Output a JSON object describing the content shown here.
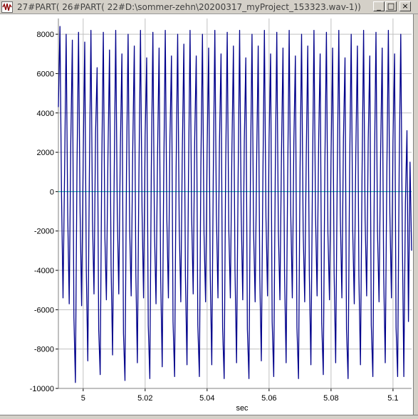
{
  "window": {
    "title": "27#PART( 26#PART( 22#D:\\sommer-zehn\\20200317_myProject_153323.wav-1))",
    "min_glyph": "_",
    "max_glyph": "□",
    "close_glyph": "×",
    "icon": "waveform-app-icon"
  },
  "colors": {
    "signal": "#00008b",
    "zero_line": "#00a0a0",
    "grid": "#c0c0c0",
    "titlebar": "#d4d0c8"
  },
  "chart_data": {
    "type": "line",
    "xlabel": "sec",
    "ylabel": "",
    "xlim": [
      4.992,
      5.106
    ],
    "ylim": [
      -10000,
      8800
    ],
    "yticks": [
      8000,
      6000,
      4000,
      2000,
      0,
      -2000,
      -4000,
      -6000,
      -8000,
      -10000
    ],
    "ytick_labels": [
      "8000",
      "6000",
      "4000",
      "2000",
      "0",
      "-2000",
      "-4000",
      "-6000",
      "-8000",
      "-10000"
    ],
    "xticks": [
      5,
      5.02,
      5.04,
      5.06,
      5.08,
      5.1
    ],
    "xtick_labels": [
      "5",
      "5.02",
      "5.04",
      "5.06",
      "5.08",
      "5.1"
    ],
    "grid": true,
    "series": [
      {
        "x_start": 4.992,
        "x_end": 5.106,
        "peak_max": 8400,
        "peak_min": -9700,
        "approx_period_sec": 0.00455,
        "points": [
          [
            4.992,
            4300
          ],
          [
            4.9925,
            8400
          ],
          [
            4.993,
            -200
          ],
          [
            4.9935,
            -5400
          ],
          [
            4.994,
            1000
          ],
          [
            4.9945,
            8000
          ],
          [
            4.995,
            -1200
          ],
          [
            4.9955,
            -5700
          ],
          [
            4.996,
            2500
          ],
          [
            4.9965,
            7700
          ],
          [
            4.997,
            -6400
          ],
          [
            4.9975,
            -9700
          ],
          [
            4.998,
            1200
          ],
          [
            4.9985,
            8100
          ],
          [
            4.999,
            -1100
          ],
          [
            4.9995,
            -5800
          ],
          [
            5.0,
            1600
          ],
          [
            5.0005,
            7600
          ],
          [
            5.001,
            -4000
          ],
          [
            5.0015,
            -8600
          ],
          [
            5.002,
            900
          ],
          [
            5.0025,
            8200
          ],
          [
            5.003,
            -1500
          ],
          [
            5.0035,
            -5200
          ],
          [
            5.004,
            3000
          ],
          [
            5.0045,
            6300
          ],
          [
            5.005,
            -7000
          ],
          [
            5.0055,
            -9300
          ],
          [
            5.006,
            1400
          ],
          [
            5.0065,
            8100
          ],
          [
            5.007,
            -2300
          ],
          [
            5.0075,
            -5500
          ],
          [
            5.008,
            1800
          ],
          [
            5.0085,
            7200
          ],
          [
            5.009,
            -3800
          ],
          [
            5.0095,
            -8300
          ],
          [
            5.01,
            600
          ],
          [
            5.0105,
            8200
          ],
          [
            5.011,
            -1100
          ],
          [
            5.0115,
            -5200
          ],
          [
            5.012,
            2200
          ],
          [
            5.0125,
            7000
          ],
          [
            5.013,
            -7200
          ],
          [
            5.0135,
            -9600
          ],
          [
            5.014,
            1300
          ],
          [
            5.0145,
            8000
          ],
          [
            5.015,
            -1900
          ],
          [
            5.0155,
            -5300
          ],
          [
            5.016,
            2100
          ],
          [
            5.0165,
            7400
          ],
          [
            5.017,
            -4200
          ],
          [
            5.0175,
            -8700
          ],
          [
            5.018,
            900
          ],
          [
            5.0185,
            8200
          ],
          [
            5.019,
            -1000
          ],
          [
            5.0195,
            -5400
          ],
          [
            5.02,
            2800
          ],
          [
            5.0205,
            6800
          ],
          [
            5.021,
            -6800
          ],
          [
            5.0215,
            -9500
          ],
          [
            5.022,
            1200
          ],
          [
            5.0225,
            8100
          ],
          [
            5.023,
            -2000
          ],
          [
            5.0235,
            -5700
          ],
          [
            5.024,
            1800
          ],
          [
            5.0245,
            7300
          ],
          [
            5.025,
            -4300
          ],
          [
            5.0255,
            -8900
          ],
          [
            5.026,
            700
          ],
          [
            5.0265,
            8200
          ],
          [
            5.027,
            -1400
          ],
          [
            5.0275,
            -5400
          ],
          [
            5.028,
            2600
          ],
          [
            5.0285,
            6900
          ],
          [
            5.029,
            -6600
          ],
          [
            5.0295,
            -9400
          ],
          [
            5.03,
            1100
          ],
          [
            5.0305,
            8000
          ],
          [
            5.031,
            -1800
          ],
          [
            5.0315,
            -5600
          ],
          [
            5.032,
            2000
          ],
          [
            5.0325,
            7500
          ],
          [
            5.033,
            -4300
          ],
          [
            5.0335,
            -8800
          ],
          [
            5.034,
            800
          ],
          [
            5.0345,
            8200
          ],
          [
            5.035,
            -1200
          ],
          [
            5.0355,
            -5200
          ],
          [
            5.036,
            2700
          ],
          [
            5.0365,
            6900
          ],
          [
            5.037,
            -6800
          ],
          [
            5.0375,
            -9400
          ],
          [
            5.038,
            1300
          ],
          [
            5.0385,
            8000
          ],
          [
            5.039,
            -2100
          ],
          [
            5.0395,
            -5600
          ],
          [
            5.04,
            1900
          ],
          [
            5.0405,
            7300
          ],
          [
            5.041,
            -4100
          ],
          [
            5.0415,
            -8800
          ],
          [
            5.042,
            800
          ],
          [
            5.0425,
            8200
          ],
          [
            5.043,
            -1200
          ],
          [
            5.0435,
            -5400
          ],
          [
            5.044,
            2500
          ],
          [
            5.0445,
            7000
          ],
          [
            5.045,
            -6900
          ],
          [
            5.0455,
            -9500
          ],
          [
            5.046,
            1200
          ],
          [
            5.0465,
            8100
          ],
          [
            5.047,
            -1900
          ],
          [
            5.0475,
            -5400
          ],
          [
            5.048,
            1900
          ],
          [
            5.0485,
            7400
          ],
          [
            5.049,
            -4000
          ],
          [
            5.0495,
            -8700
          ],
          [
            5.05,
            700
          ],
          [
            5.0505,
            8200
          ],
          [
            5.051,
            -1100
          ],
          [
            5.0515,
            -5500
          ],
          [
            5.052,
            2600
          ],
          [
            5.0525,
            6800
          ],
          [
            5.053,
            -7000
          ],
          [
            5.0535,
            -9500
          ],
          [
            5.054,
            1300
          ],
          [
            5.0545,
            8000
          ],
          [
            5.055,
            -2000
          ],
          [
            5.0555,
            -5600
          ],
          [
            5.056,
            1800
          ],
          [
            5.0565,
            7400
          ],
          [
            5.057,
            -4300
          ],
          [
            5.0575,
            -8600
          ],
          [
            5.058,
            800
          ],
          [
            5.0585,
            8200
          ],
          [
            5.059,
            -1300
          ],
          [
            5.0595,
            -5300
          ],
          [
            5.06,
            2700
          ],
          [
            5.0605,
            7000
          ],
          [
            5.061,
            -6600
          ],
          [
            5.0615,
            -9400
          ],
          [
            5.062,
            1100
          ],
          [
            5.0625,
            8100
          ],
          [
            5.063,
            -2000
          ],
          [
            5.0635,
            -5500
          ],
          [
            5.064,
            2000
          ],
          [
            5.0645,
            7300
          ],
          [
            5.065,
            -4200
          ],
          [
            5.0655,
            -8700
          ],
          [
            5.066,
            800
          ],
          [
            5.0665,
            8200
          ],
          [
            5.067,
            -1100
          ],
          [
            5.0675,
            -5400
          ],
          [
            5.068,
            2600
          ],
          [
            5.0685,
            6900
          ],
          [
            5.069,
            -6900
          ],
          [
            5.0695,
            -9500
          ],
          [
            5.07,
            1200
          ],
          [
            5.0705,
            8000
          ],
          [
            5.071,
            -1900
          ],
          [
            5.0715,
            -5600
          ],
          [
            5.072,
            1900
          ],
          [
            5.0725,
            7400
          ],
          [
            5.073,
            -4200
          ],
          [
            5.0735,
            -8800
          ],
          [
            5.074,
            700
          ],
          [
            5.0745,
            8200
          ],
          [
            5.075,
            -1200
          ],
          [
            5.0755,
            -5300
          ],
          [
            5.076,
            2600
          ],
          [
            5.0765,
            7000
          ],
          [
            5.077,
            -6700
          ],
          [
            5.0775,
            -9300
          ],
          [
            5.078,
            1300
          ],
          [
            5.0785,
            8100
          ],
          [
            5.079,
            -2100
          ],
          [
            5.0795,
            -5500
          ],
          [
            5.08,
            1800
          ],
          [
            5.0805,
            7300
          ],
          [
            5.081,
            -4100
          ],
          [
            5.0815,
            -8700
          ],
          [
            5.082,
            900
          ],
          [
            5.0825,
            8200
          ],
          [
            5.083,
            -1200
          ],
          [
            5.0835,
            -5400
          ],
          [
            5.084,
            2700
          ],
          [
            5.0845,
            6800
          ],
          [
            5.085,
            -7000
          ],
          [
            5.0855,
            -9500
          ],
          [
            5.086,
            1200
          ],
          [
            5.0865,
            8000
          ],
          [
            5.087,
            -1900
          ],
          [
            5.0875,
            -5700
          ],
          [
            5.088,
            2000
          ],
          [
            5.0885,
            7400
          ],
          [
            5.089,
            -4300
          ],
          [
            5.0895,
            -8800
          ],
          [
            5.09,
            800
          ],
          [
            5.0905,
            8200
          ],
          [
            5.091,
            -1300
          ],
          [
            5.0915,
            -5300
          ],
          [
            5.092,
            2600
          ],
          [
            5.0925,
            6900
          ],
          [
            5.093,
            -6800
          ],
          [
            5.0935,
            -9400
          ],
          [
            5.094,
            1200
          ],
          [
            5.0945,
            8100
          ],
          [
            5.095,
            -2000
          ],
          [
            5.0955,
            -5600
          ],
          [
            5.096,
            1900
          ],
          [
            5.0965,
            7300
          ],
          [
            5.097,
            -4200
          ],
          [
            5.0975,
            -8700
          ],
          [
            5.098,
            800
          ],
          [
            5.0985,
            8200
          ],
          [
            5.099,
            -1100
          ],
          [
            5.0995,
            -5400
          ],
          [
            5.1,
            2600
          ],
          [
            5.1005,
            7000
          ],
          [
            5.101,
            -6900
          ],
          [
            5.1015,
            -9400
          ],
          [
            5.102,
            1300
          ],
          [
            5.1025,
            8000
          ],
          [
            5.103,
            -2000
          ],
          [
            5.1035,
            -9400
          ],
          [
            5.104,
            -600
          ],
          [
            5.1045,
            3100
          ],
          [
            5.105,
            -6600
          ],
          [
            5.1055,
            1500
          ],
          [
            5.106,
            -3000
          ]
        ]
      }
    ]
  }
}
